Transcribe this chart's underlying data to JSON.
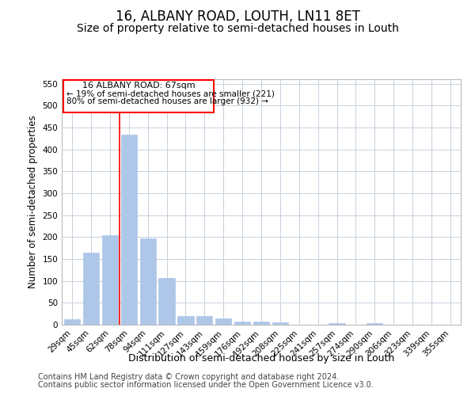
{
  "title": "16, ALBANY ROAD, LOUTH, LN11 8ET",
  "subtitle": "Size of property relative to semi-detached houses in Louth",
  "xlabel": "Distribution of semi-detached houses by size in Louth",
  "ylabel": "Number of semi-detached properties",
  "categories": [
    "29sqm",
    "45sqm",
    "62sqm",
    "78sqm",
    "94sqm",
    "111sqm",
    "127sqm",
    "143sqm",
    "159sqm",
    "176sqm",
    "192sqm",
    "208sqm",
    "225sqm",
    "241sqm",
    "257sqm",
    "274sqm",
    "290sqm",
    "306sqm",
    "323sqm",
    "339sqm",
    "355sqm"
  ],
  "values": [
    13,
    165,
    205,
    433,
    197,
    107,
    20,
    20,
    15,
    8,
    8,
    5,
    0,
    0,
    4,
    0,
    4,
    0,
    0,
    0,
    0
  ],
  "bar_color": "#aec6e8",
  "bar_edge_color": "#aec6e8",
  "vline_x": 2.5,
  "vline_color": "red",
  "annotation_title": "16 ALBANY ROAD: 67sqm",
  "annotation_line1": "← 19% of semi-detached houses are smaller (221)",
  "annotation_line2": "80% of semi-detached houses are larger (932) →",
  "box_color": "red",
  "ylim": [
    0,
    560
  ],
  "yticks": [
    0,
    50,
    100,
    150,
    200,
    250,
    300,
    350,
    400,
    450,
    500,
    550
  ],
  "footer1": "Contains HM Land Registry data © Crown copyright and database right 2024.",
  "footer2": "Contains public sector information licensed under the Open Government Licence v3.0.",
  "title_fontsize": 12,
  "subtitle_fontsize": 10,
  "axis_label_fontsize": 8.5,
  "tick_fontsize": 7.5,
  "footer_fontsize": 7,
  "background_color": "#ffffff",
  "grid_color": "#c8d0dc"
}
